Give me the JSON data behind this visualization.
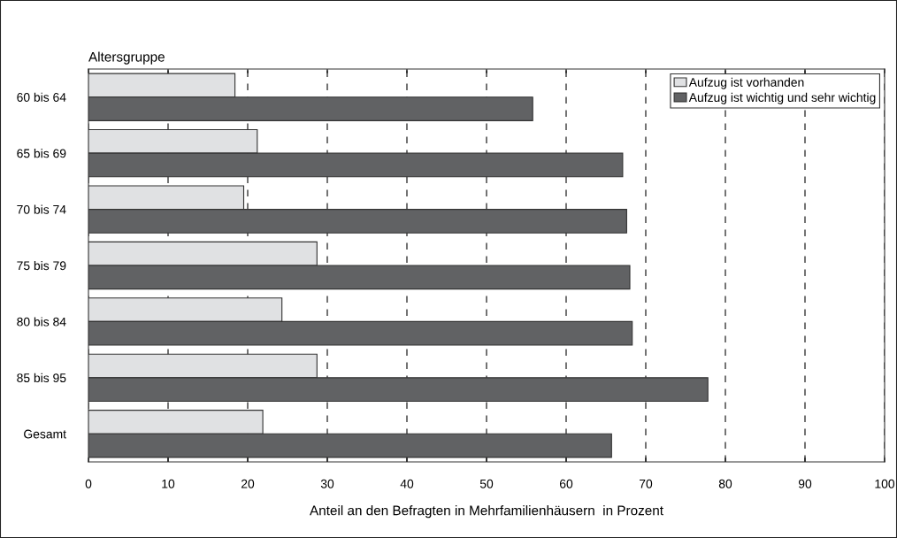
{
  "chart_data": {
    "type": "bar",
    "orientation": "horizontal",
    "ylabel": "Altersgruppe",
    "xlabel": "Anteil an den Befragten in Mehrfamilienhäusern  in Prozent",
    "categories": [
      "60 bis 64",
      "65 bis 69",
      "70 bis 74",
      "75 bis 79",
      "80 bis 84",
      "85 bis 95",
      "Gesamt"
    ],
    "series": [
      {
        "name": "Aufzug ist vorhanden",
        "color": "#e0e1e3",
        "values": [
          18.4,
          21.2,
          19.5,
          28.7,
          24.3,
          28.7,
          21.9
        ]
      },
      {
        "name": "Aufzug ist wichtig und sehr wichtig",
        "color": "#616264",
        "values": [
          55.8,
          67.1,
          67.6,
          68.0,
          68.3,
          77.8,
          65.7
        ]
      }
    ],
    "xlim": [
      0,
      100
    ],
    "xticks": [
      0,
      10,
      20,
      30,
      40,
      50,
      60,
      70,
      80,
      90,
      100
    ],
    "grid": "x",
    "line_style": "dashed",
    "legend": "top right"
  }
}
